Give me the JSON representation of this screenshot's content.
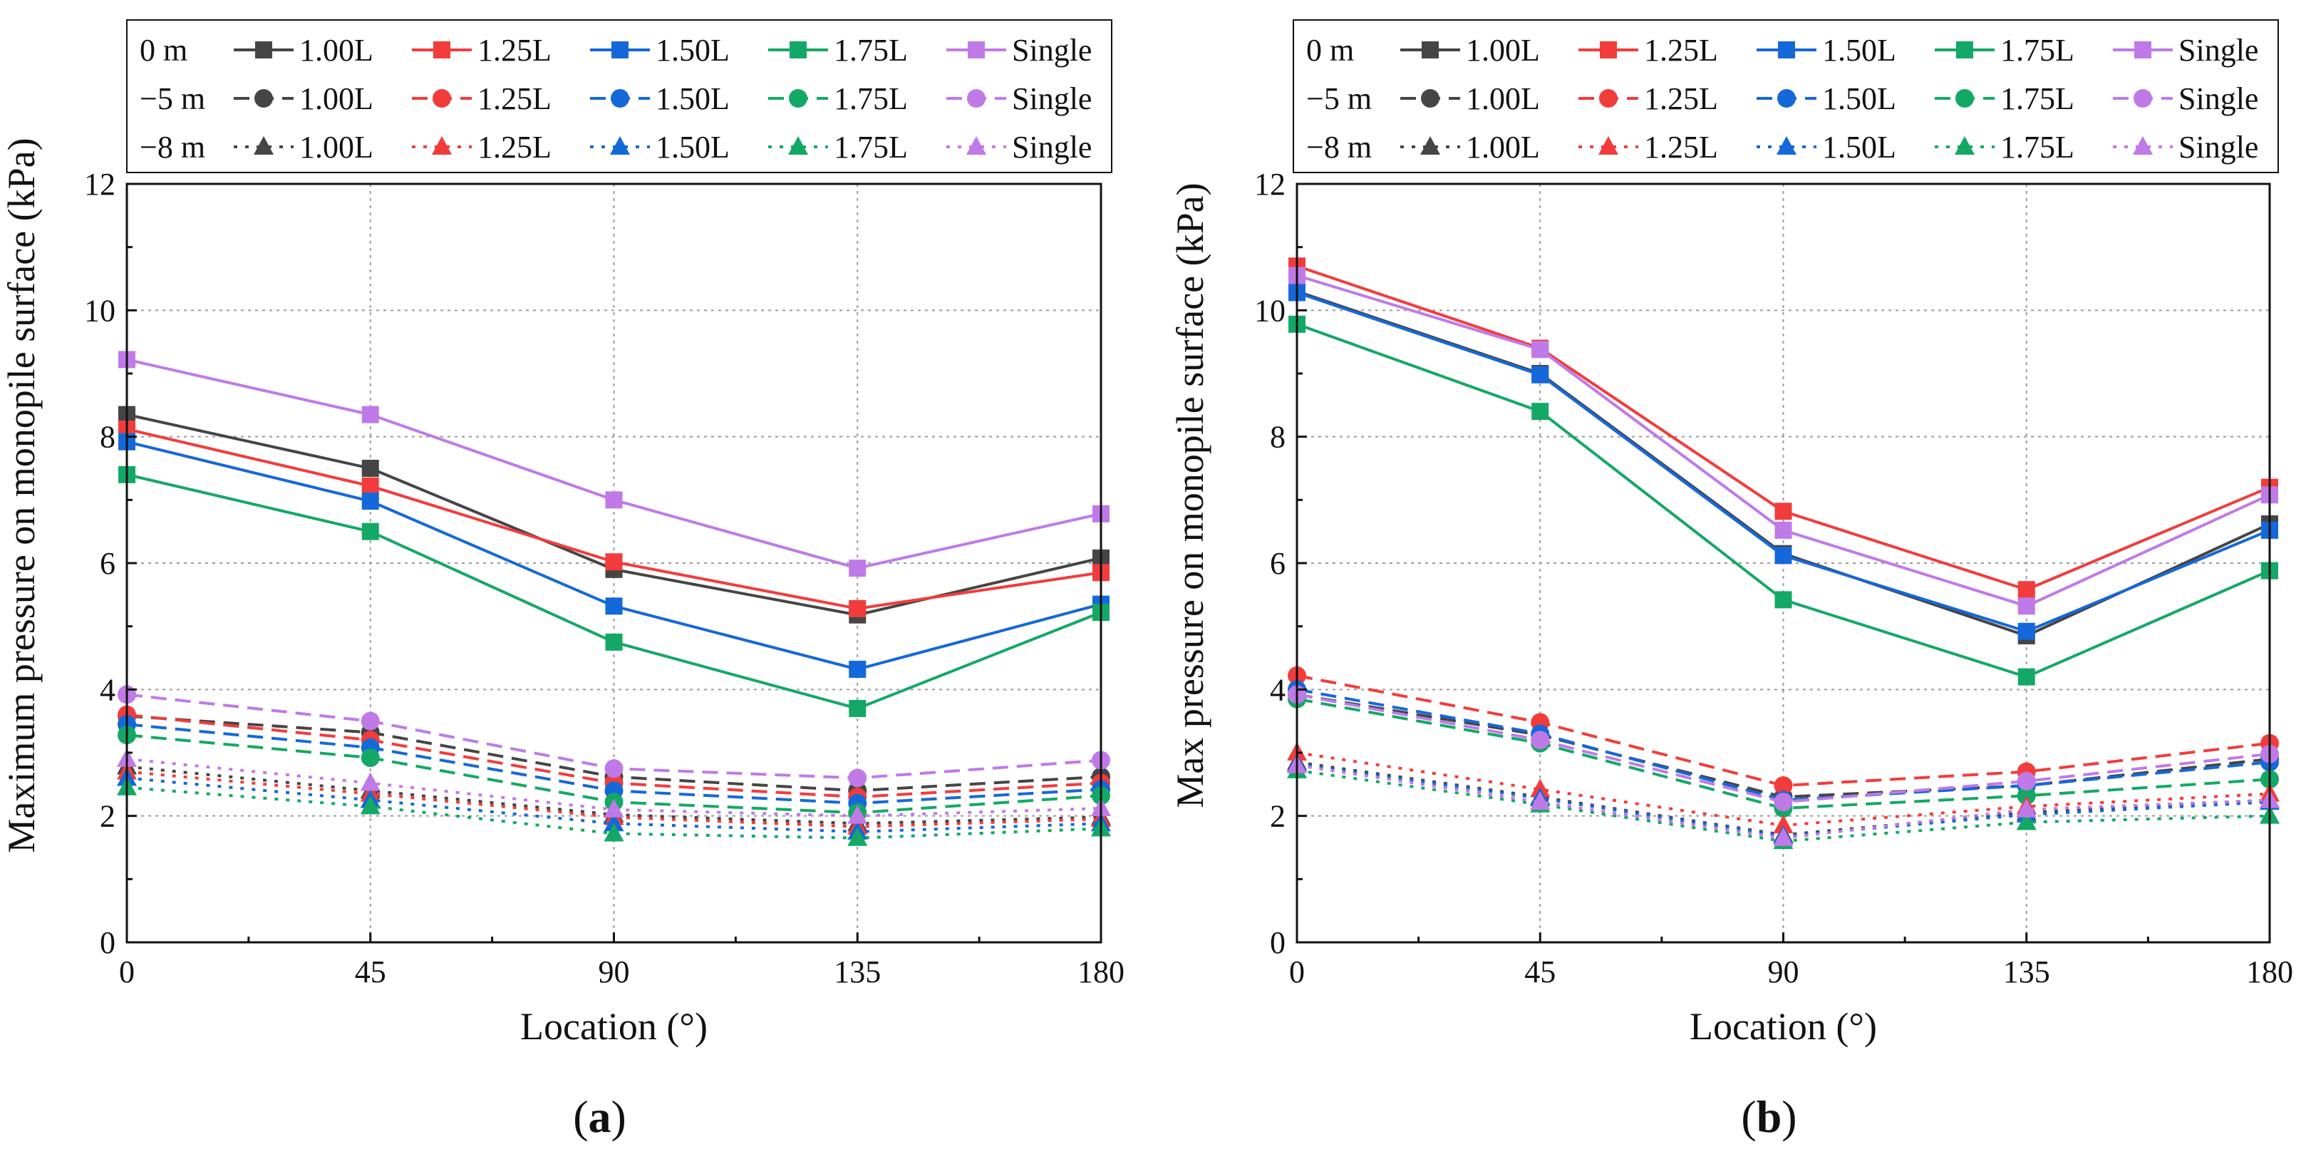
{
  "figure": {
    "x": [
      0,
      45,
      90,
      135,
      180
    ],
    "ylim": [
      0,
      12
    ],
    "yticks": [
      0,
      2,
      4,
      6,
      8,
      10,
      12
    ],
    "xticks": [
      0,
      45,
      90,
      135,
      180
    ],
    "grid": true,
    "legend_position": "top",
    "colors": {
      "1.00L": "#454545",
      "1.25L": "#f23c3c",
      "1.50L": "#1568d9",
      "1.75L": "#14a867",
      "Single": "#bf7ae8"
    },
    "depth_styles": {
      "0 m": {
        "dash": "solid",
        "marker": "square"
      },
      "−5 m": {
        "dash": "dashed",
        "marker": "circle"
      },
      "−8 m": {
        "dash": "dotted",
        "marker": "triangle"
      }
    }
  },
  "chart_data": [
    {
      "type": "line",
      "panel_label": "(a)",
      "xlabel": "Location (°)",
      "ylabel": "Maximum pressure on monopile surface (kPa)",
      "xlim": [
        0,
        180
      ],
      "ylim": [
        0,
        12
      ],
      "legend": {
        "rows": [
          "0 m",
          "−5 m",
          "−8 m"
        ],
        "entries": [
          "1.00L",
          "1.25L",
          "1.50L",
          "1.75L",
          "Single"
        ]
      },
      "series": [
        {
          "name": "1.00L",
          "depth": "0 m",
          "values": [
            8.35,
            7.5,
            5.9,
            5.18,
            6.08
          ]
        },
        {
          "name": "1.25L",
          "depth": "0 m",
          "values": [
            8.12,
            7.22,
            6.02,
            5.28,
            5.85
          ]
        },
        {
          "name": "1.50L",
          "depth": "0 m",
          "values": [
            7.92,
            6.98,
            5.32,
            4.32,
            5.35
          ]
        },
        {
          "name": "1.75L",
          "depth": "0 m",
          "values": [
            7.4,
            6.5,
            4.75,
            3.7,
            5.22
          ]
        },
        {
          "name": "Single",
          "depth": "0 m",
          "values": [
            9.22,
            8.35,
            7.0,
            5.92,
            6.78
          ]
        },
        {
          "name": "1.00L",
          "depth": "−5 m",
          "values": [
            3.58,
            3.32,
            2.62,
            2.4,
            2.62
          ]
        },
        {
          "name": "1.25L",
          "depth": "−5 m",
          "values": [
            3.6,
            3.2,
            2.52,
            2.3,
            2.52
          ]
        },
        {
          "name": "1.50L",
          "depth": "−5 m",
          "values": [
            3.45,
            3.08,
            2.4,
            2.2,
            2.42
          ]
        },
        {
          "name": "1.75L",
          "depth": "−5 m",
          "values": [
            3.28,
            2.92,
            2.22,
            2.05,
            2.32
          ]
        },
        {
          "name": "Single",
          "depth": "−5 m",
          "values": [
            3.92,
            3.5,
            2.75,
            2.6,
            2.88
          ]
        },
        {
          "name": "1.00L",
          "depth": "−8 m",
          "values": [
            2.78,
            2.4,
            2.02,
            1.88,
            1.98
          ]
        },
        {
          "name": "1.25L",
          "depth": "−8 m",
          "values": [
            2.7,
            2.35,
            1.98,
            1.83,
            1.95
          ]
        },
        {
          "name": "1.50L",
          "depth": "−8 m",
          "values": [
            2.6,
            2.25,
            1.88,
            1.75,
            1.88
          ]
        },
        {
          "name": "1.75L",
          "depth": "−8 m",
          "values": [
            2.45,
            2.15,
            1.72,
            1.65,
            1.8
          ]
        },
        {
          "name": "Single",
          "depth": "−8 m",
          "values": [
            2.9,
            2.52,
            2.1,
            2.0,
            2.12
          ]
        }
      ]
    },
    {
      "type": "line",
      "panel_label": "(b)",
      "xlabel": "Location (°)",
      "ylabel": "Max pressure on monopile surface (kPa)",
      "xlim": [
        0,
        180
      ],
      "ylim": [
        0,
        12
      ],
      "legend": {
        "rows": [
          "0 m",
          "−5 m",
          "−8 m"
        ],
        "entries": [
          "1.00L",
          "1.25L",
          "1.50L",
          "1.75L",
          "Single"
        ]
      },
      "series": [
        {
          "name": "1.00L",
          "depth": "0 m",
          "values": [
            10.3,
            9.0,
            6.15,
            4.85,
            6.62
          ]
        },
        {
          "name": "1.25L",
          "depth": "0 m",
          "values": [
            10.7,
            9.4,
            6.82,
            5.58,
            7.2
          ]
        },
        {
          "name": "1.50L",
          "depth": "0 m",
          "values": [
            10.28,
            8.98,
            6.12,
            4.92,
            6.52
          ]
        },
        {
          "name": "1.75L",
          "depth": "0 m",
          "values": [
            9.78,
            8.4,
            5.42,
            4.2,
            5.88
          ]
        },
        {
          "name": "Single",
          "depth": "0 m",
          "values": [
            10.55,
            9.38,
            6.52,
            5.32,
            7.08
          ]
        },
        {
          "name": "1.00L",
          "depth": "−5 m",
          "values": [
            3.92,
            3.28,
            2.3,
            2.48,
            2.9
          ]
        },
        {
          "name": "1.25L",
          "depth": "−5 m",
          "values": [
            4.22,
            3.48,
            2.48,
            2.7,
            3.15
          ]
        },
        {
          "name": "1.50L",
          "depth": "−5 m",
          "values": [
            4.0,
            3.3,
            2.25,
            2.48,
            2.85
          ]
        },
        {
          "name": "1.75L",
          "depth": "−5 m",
          "values": [
            3.85,
            3.15,
            2.12,
            2.32,
            2.58
          ]
        },
        {
          "name": "Single",
          "depth": "−5 m",
          "values": [
            3.92,
            3.2,
            2.22,
            2.55,
            2.98
          ]
        },
        {
          "name": "1.00L",
          "depth": "−8 m",
          "values": [
            2.85,
            2.3,
            1.7,
            2.05,
            2.25
          ]
        },
        {
          "name": "1.25L",
          "depth": "−8 m",
          "values": [
            3.0,
            2.42,
            1.85,
            2.15,
            2.35
          ]
        },
        {
          "name": "1.50L",
          "depth": "−8 m",
          "values": [
            2.82,
            2.28,
            1.68,
            2.02,
            2.22
          ]
        },
        {
          "name": "1.75L",
          "depth": "−8 m",
          "values": [
            2.72,
            2.18,
            1.6,
            1.9,
            2.0
          ]
        },
        {
          "name": "Single",
          "depth": "−8 m",
          "values": [
            2.8,
            2.22,
            1.65,
            2.1,
            2.25
          ]
        }
      ]
    }
  ]
}
